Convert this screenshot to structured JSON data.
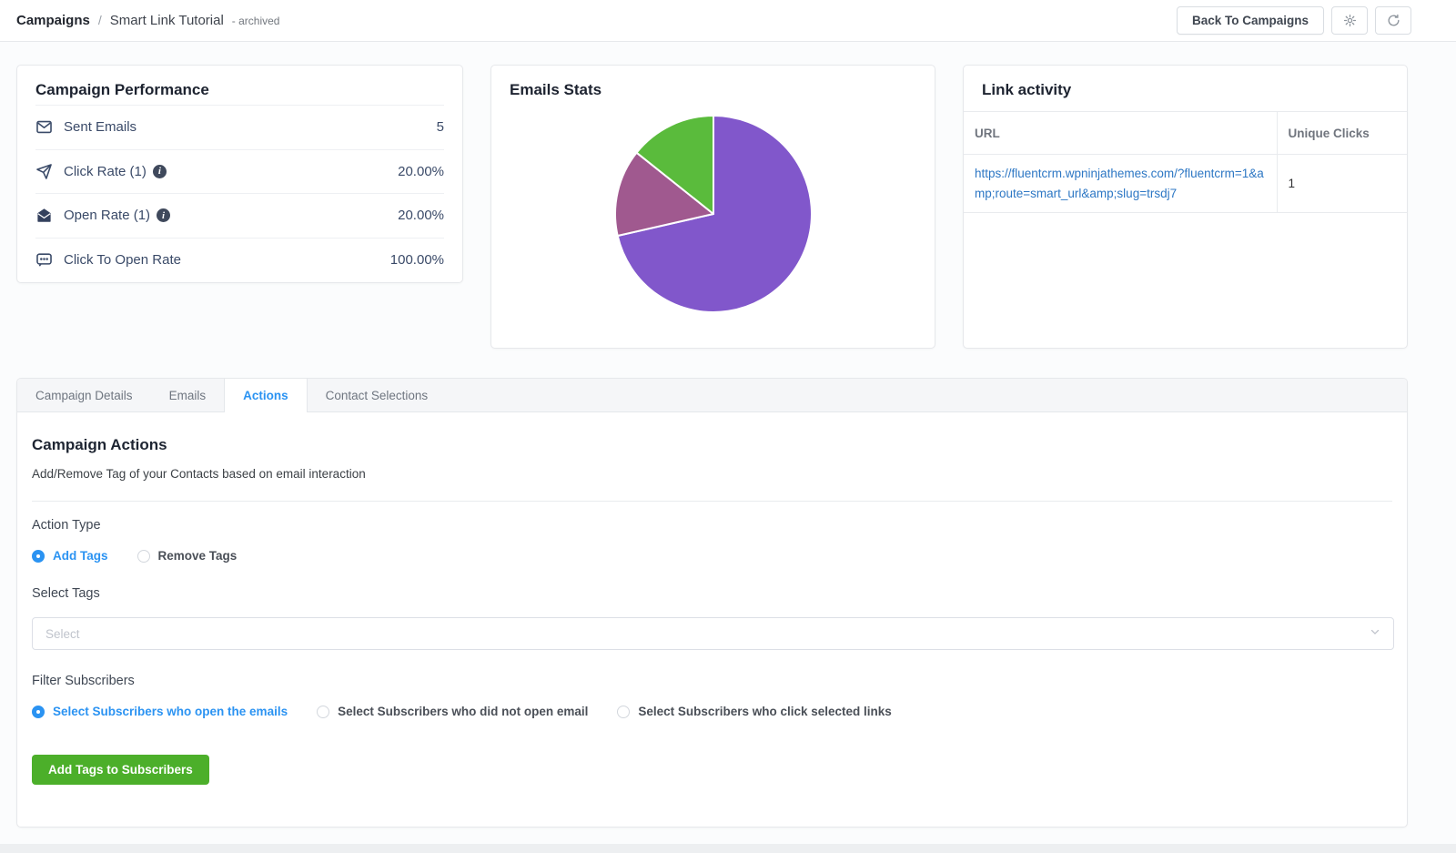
{
  "header": {
    "breadcrumb": {
      "root": "Campaigns",
      "separator": "/",
      "current": "Smart Link Tutorial",
      "status": "- archived"
    },
    "back_button": "Back To Campaigns",
    "icon_buttons": [
      "gear-icon",
      "refresh-icon"
    ]
  },
  "performance": {
    "title": "Campaign Performance",
    "rows": [
      {
        "icon": "envelope-icon",
        "label": "Sent Emails",
        "value": "5",
        "has_info": false
      },
      {
        "icon": "send-icon",
        "label": "Click Rate (1)",
        "value": "20.00%",
        "has_info": true
      },
      {
        "icon": "envelope-open-icon",
        "label": "Open Rate (1)",
        "value": "20.00%",
        "has_info": true
      },
      {
        "icon": "chat-icon",
        "label": "Click To Open Rate",
        "value": "100.00%",
        "has_info": false
      }
    ]
  },
  "emails_stats": {
    "title": "Emails Stats"
  },
  "chart_data": {
    "type": "pie",
    "title": "Emails Stats",
    "labels": [
      "segment-purple",
      "segment-plum",
      "segment-green"
    ],
    "values": [
      5,
      1,
      1
    ],
    "percents": [
      71.43,
      14.29,
      14.29
    ],
    "colors": [
      "#8157cb",
      "#a0598f",
      "#5abb3c"
    ],
    "start_angle_deg": 0,
    "direction": "clockwise",
    "legend": "none",
    "slice_border_color": "#ffffff"
  },
  "link_activity": {
    "title": "Link activity",
    "columns": {
      "url": "URL",
      "unique_clicks": "Unique Clicks"
    },
    "rows": [
      {
        "url": "https://fluentcrm.wpninjathemes.com/?fluentcrm=1&amp;route=smart_url&amp;slug=trsdj7",
        "unique_clicks": "1"
      }
    ]
  },
  "tabs": [
    {
      "label": "Campaign Details"
    },
    {
      "label": "Emails"
    },
    {
      "label": "Actions"
    },
    {
      "label": "Contact Selections"
    }
  ],
  "actions_panel": {
    "title": "Campaign Actions",
    "subtitle": "Add/Remove Tag of your Contacts based on email interaction",
    "action_type_label": "Action Type",
    "action_type_options": [
      {
        "label": "Add Tags",
        "selected": true
      },
      {
        "label": "Remove Tags",
        "selected": false
      }
    ],
    "select_tags_label": "Select Tags",
    "select_placeholder": "Select",
    "filter_label": "Filter Subscribers",
    "filter_options": [
      {
        "label": "Select Subscribers who open the emails",
        "selected": true
      },
      {
        "label": "Select Subscribers who did not open email",
        "selected": false
      },
      {
        "label": "Select Subscribers who click selected links",
        "selected": false
      }
    ],
    "submit_button": "Add Tags to Subscribers"
  },
  "colors": {
    "accent_blue": "#2b93f2",
    "link_blue": "#2d77c4",
    "button_green": "#4caf2a",
    "stat_text": "#3a4a68"
  }
}
